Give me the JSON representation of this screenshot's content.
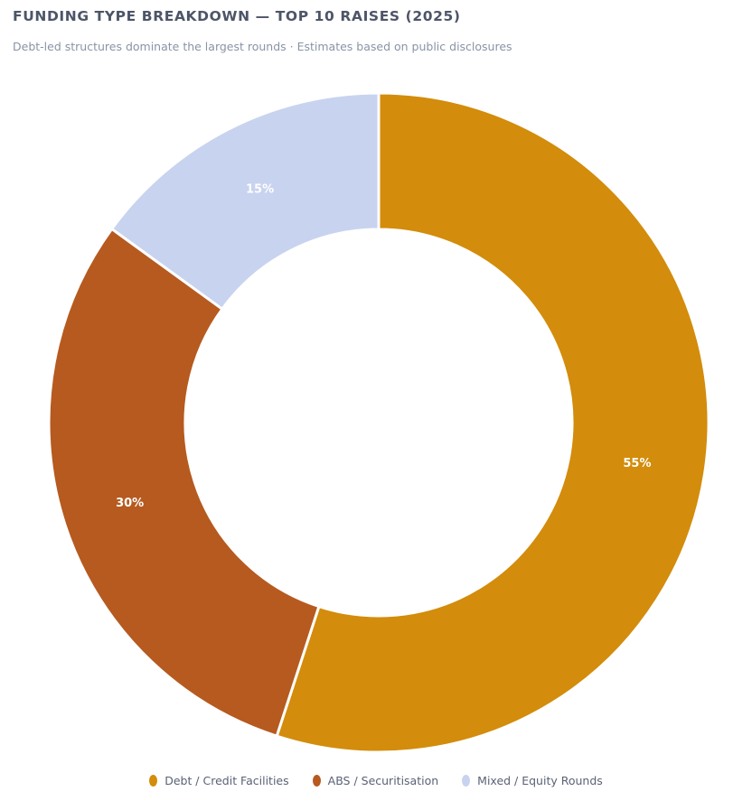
{
  "title": "FUNDING TYPE BREAKDOWN — TOP 10 RAISES (2025)",
  "subtitle": "Debt-led structures dominate the largest rounds · Estimates based on public disclosures",
  "chart_data": {
    "type": "pie",
    "variant": "donut",
    "title": "FUNDING TYPE BREAKDOWN — TOP 10 RAISES (2025)",
    "subtitle": "Debt-led structures dominate the largest rounds · Estimates based on public disclosures",
    "slices": [
      {
        "label": "Debt / Credit Facilities",
        "value": 55,
        "display": "55%",
        "color": "#d38c0b"
      },
      {
        "label": "ABS / Securitisation",
        "value": 30,
        "display": "30%",
        "color": "#b65a1f"
      },
      {
        "label": "Mixed / Equity Rounds",
        "value": 15,
        "display": "15%",
        "color": "#c8d3ef"
      }
    ],
    "legend_position": "bottom"
  }
}
